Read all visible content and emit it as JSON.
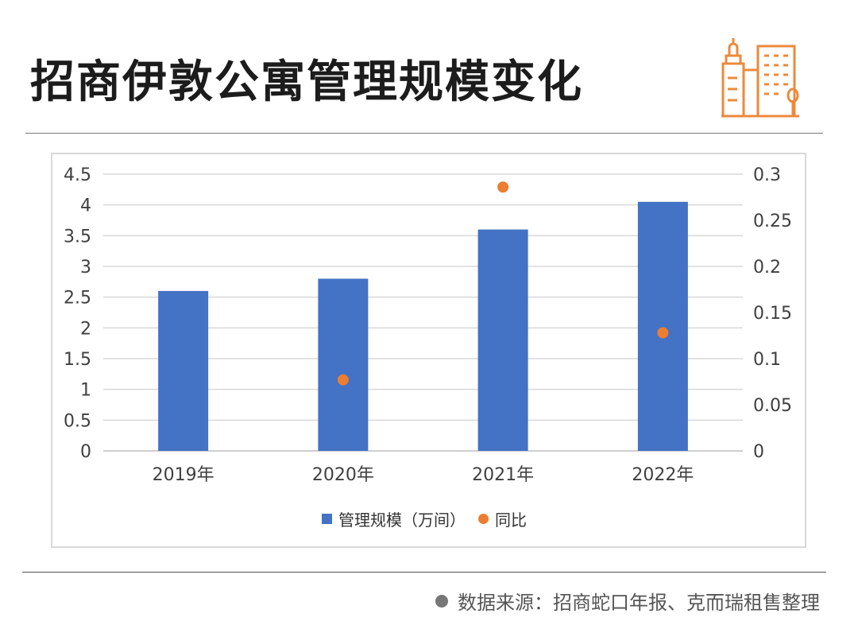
{
  "header": {
    "title": "招商伊敦公寓管理规模变化"
  },
  "chart_data": {
    "type": "bar",
    "categories": [
      "2019年",
      "2020年",
      "2021年",
      "2022年"
    ],
    "series": [
      {
        "name": "管理规模（万间）",
        "type": "bar",
        "axis": "left",
        "color": "#4472c4",
        "values": [
          2.6,
          2.8,
          3.6,
          4.05
        ]
      },
      {
        "name": "同比",
        "type": "scatter",
        "axis": "right",
        "color": "#ed7d31",
        "values": [
          null,
          0.077,
          0.286,
          0.128
        ]
      }
    ],
    "y_left": {
      "min": 0,
      "max": 4.5,
      "ticks": [
        "0",
        "0.5",
        "1",
        "1.5",
        "2",
        "2.5",
        "3",
        "3.5",
        "4",
        "4.5"
      ]
    },
    "y_right": {
      "min": 0,
      "max": 0.3,
      "ticks": [
        "0",
        "0.05",
        "0.1",
        "0.15",
        "0.2",
        "0.25",
        "0.3"
      ]
    },
    "grid": true,
    "legend_position": "bottom"
  },
  "footer": {
    "source": "数据来源：招商蛇口年报、克而瑞租售整理"
  }
}
